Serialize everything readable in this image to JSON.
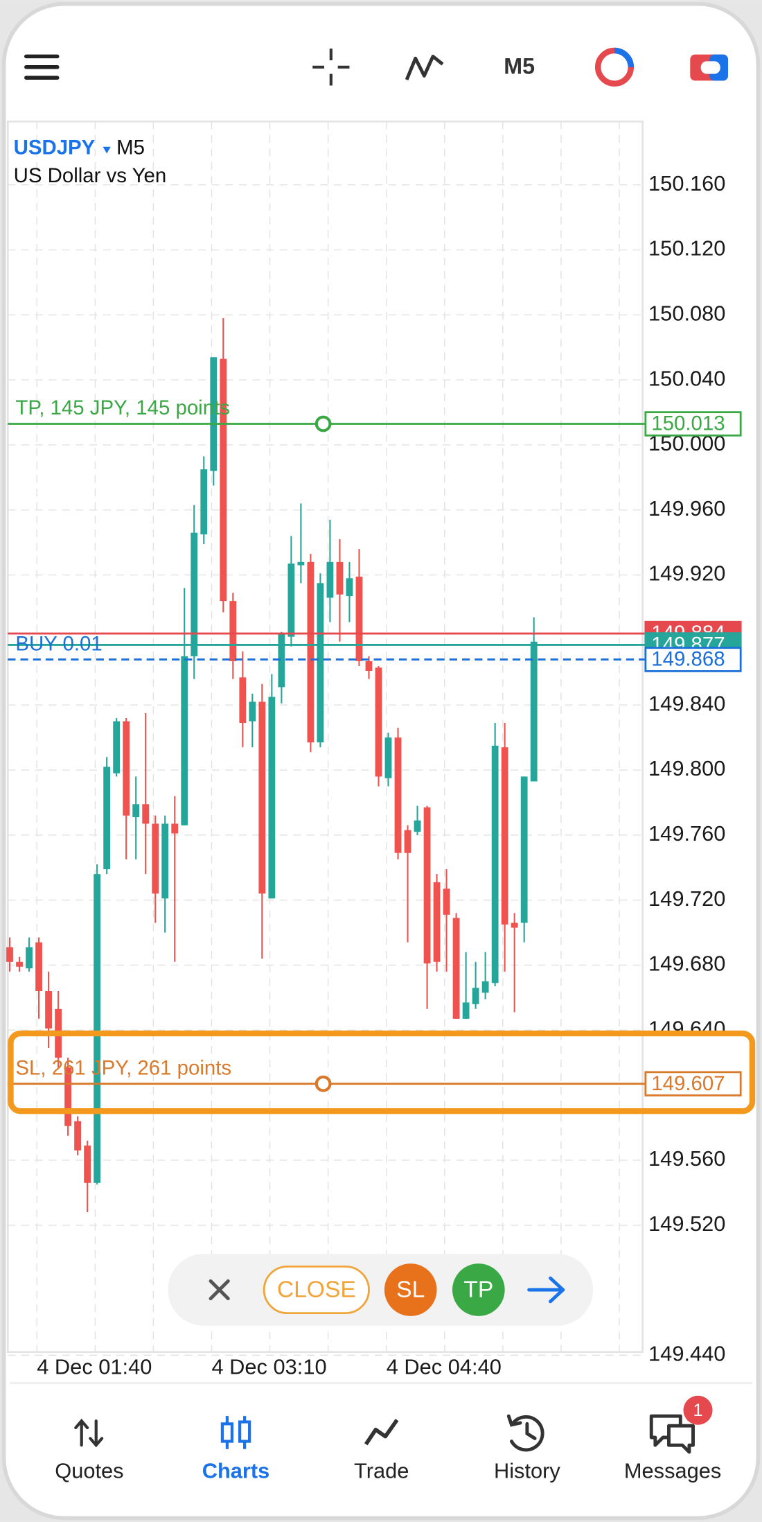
{
  "toolbar": {
    "timeframe": "M5"
  },
  "chart": {
    "symbol": "USDJPY",
    "timeframe": "M5",
    "description": "US Dollar vs Yen",
    "ylim": [
      149.442,
      150.199
    ],
    "yticks": [
      {
        "value": 150.16,
        "label": "150.160"
      },
      {
        "value": 150.12,
        "label": "150.120"
      },
      {
        "value": 150.08,
        "label": "150.080"
      },
      {
        "value": 150.04,
        "label": "150.040"
      },
      {
        "value": 150.0,
        "label": "150.000"
      },
      {
        "value": 149.96,
        "label": "149.960"
      },
      {
        "value": 149.92,
        "label": "149.920"
      },
      {
        "value": 149.84,
        "label": "149.840"
      },
      {
        "value": 149.8,
        "label": "149.800"
      },
      {
        "value": 149.76,
        "label": "149.760"
      },
      {
        "value": 149.72,
        "label": "149.720"
      },
      {
        "value": 149.68,
        "label": "149.680"
      },
      {
        "value": 149.64,
        "label": "149.640"
      },
      {
        "value": 149.56,
        "label": "149.560"
      },
      {
        "value": 149.52,
        "label": "149.520"
      },
      {
        "value": 149.44,
        "label": "149.440"
      }
    ],
    "xticks": [
      "4 Dec 01:40",
      "4 Dec 03:10",
      "4 Dec 04:40"
    ],
    "grid": true,
    "up_color": "#26a69a",
    "down_color": "#ef5350",
    "candles": [
      [
        149.691,
        149.697,
        149.676,
        149.682
      ],
      [
        149.682,
        149.685,
        149.676,
        149.679
      ],
      [
        149.678,
        149.697,
        149.676,
        149.691
      ],
      [
        149.694,
        149.697,
        149.647,
        149.664
      ],
      [
        149.664,
        149.676,
        149.629,
        149.641
      ],
      [
        149.653,
        149.664,
        149.617,
        149.623
      ],
      [
        149.617,
        149.623,
        149.575,
        149.581
      ],
      [
        149.584,
        149.587,
        149.563,
        149.566
      ],
      [
        149.569,
        149.572,
        149.528,
        149.546
      ],
      [
        149.546,
        149.742,
        149.545,
        149.736
      ],
      [
        149.739,
        149.808,
        149.736,
        149.802
      ],
      [
        149.798,
        149.832,
        149.796,
        149.83
      ],
      [
        149.83,
        149.832,
        149.745,
        149.772
      ],
      [
        149.771,
        149.796,
        149.745,
        149.779
      ],
      [
        149.779,
        149.835,
        149.736,
        149.767
      ],
      [
        149.767,
        149.772,
        149.706,
        149.724
      ],
      [
        149.721,
        149.772,
        149.7,
        149.767
      ],
      [
        149.767,
        149.784,
        149.682,
        149.761
      ],
      [
        149.766,
        149.912,
        149.766,
        149.87
      ],
      [
        149.87,
        149.963,
        149.856,
        149.946
      ],
      [
        149.945,
        149.993,
        149.939,
        149.985
      ],
      [
        149.984,
        150.054,
        149.975,
        150.054
      ],
      [
        150.053,
        150.078,
        149.897,
        149.904
      ],
      [
        149.904,
        149.909,
        149.856,
        149.867
      ],
      [
        149.857,
        149.873,
        149.814,
        149.829
      ],
      [
        149.83,
        149.847,
        149.814,
        149.842
      ],
      [
        149.842,
        149.853,
        149.684,
        149.724
      ],
      [
        149.721,
        149.859,
        149.721,
        149.845
      ],
      [
        149.851,
        149.885,
        149.841,
        149.884
      ],
      [
        149.882,
        149.944,
        149.876,
        149.927
      ],
      [
        149.926,
        149.964,
        149.915,
        149.928
      ],
      [
        149.928,
        149.933,
        149.811,
        149.817
      ],
      [
        149.817,
        149.921,
        149.814,
        149.915
      ],
      [
        149.906,
        149.954,
        149.891,
        149.928
      ],
      [
        149.928,
        149.942,
        149.879,
        149.908
      ],
      [
        149.907,
        149.928,
        149.891,
        149.918
      ],
      [
        149.919,
        149.936,
        149.864,
        149.867
      ],
      [
        149.867,
        149.87,
        149.856,
        149.861
      ],
      [
        149.863,
        149.864,
        149.79,
        149.796
      ],
      [
        149.795,
        149.823,
        149.79,
        149.82
      ],
      [
        149.82,
        149.826,
        149.745,
        149.749
      ],
      [
        149.763,
        149.766,
        149.694,
        149.749
      ],
      [
        149.762,
        149.778,
        149.76,
        149.769
      ],
      [
        149.777,
        149.778,
        149.653,
        149.681
      ],
      [
        149.731,
        149.736,
        149.676,
        149.682
      ],
      [
        149.727,
        149.739,
        149.676,
        149.711
      ],
      [
        149.709,
        149.712,
        149.647,
        149.647
      ],
      [
        149.647,
        149.688,
        149.647,
        149.657
      ],
      [
        149.656,
        149.682,
        149.653,
        149.666
      ],
      [
        149.663,
        149.688,
        149.659,
        149.67
      ],
      [
        149.669,
        149.829,
        149.667,
        149.815
      ],
      [
        149.814,
        149.829,
        149.676,
        149.705
      ],
      [
        149.706,
        149.712,
        149.651,
        149.703
      ],
      [
        149.706,
        149.796,
        149.694,
        149.796
      ],
      [
        149.793,
        149.894,
        149.793,
        149.879
      ]
    ],
    "levels": [
      {
        "label": "TP, 145 JPY, 145 points",
        "price": 150.013,
        "color": "#3aa845",
        "style": "solid",
        "tag": "outline",
        "handle": true
      },
      {
        "price": 149.884,
        "color": "#e5484d",
        "style": "solid",
        "tag": "filled",
        "handle": false
      },
      {
        "price": 149.877,
        "color": "#26a69a",
        "style": "solid",
        "tag": "filled",
        "handle": false
      },
      {
        "label": "BUY 0.01",
        "price": 149.868,
        "color": "#1a6fd8",
        "style": "dashed",
        "tag": "outline",
        "handle": false
      },
      {
        "label": "SL, 261 JPY, 261 points",
        "price": 149.607,
        "color": "#d9792b",
        "style": "solid",
        "tag": "outline",
        "handle": true
      }
    ]
  },
  "actions": {
    "close": "CLOSE",
    "sl": "SL",
    "tp": "TP"
  },
  "nav": [
    "Quotes",
    "Charts",
    "Trade",
    "History",
    "Messages"
  ],
  "badge": 1
}
